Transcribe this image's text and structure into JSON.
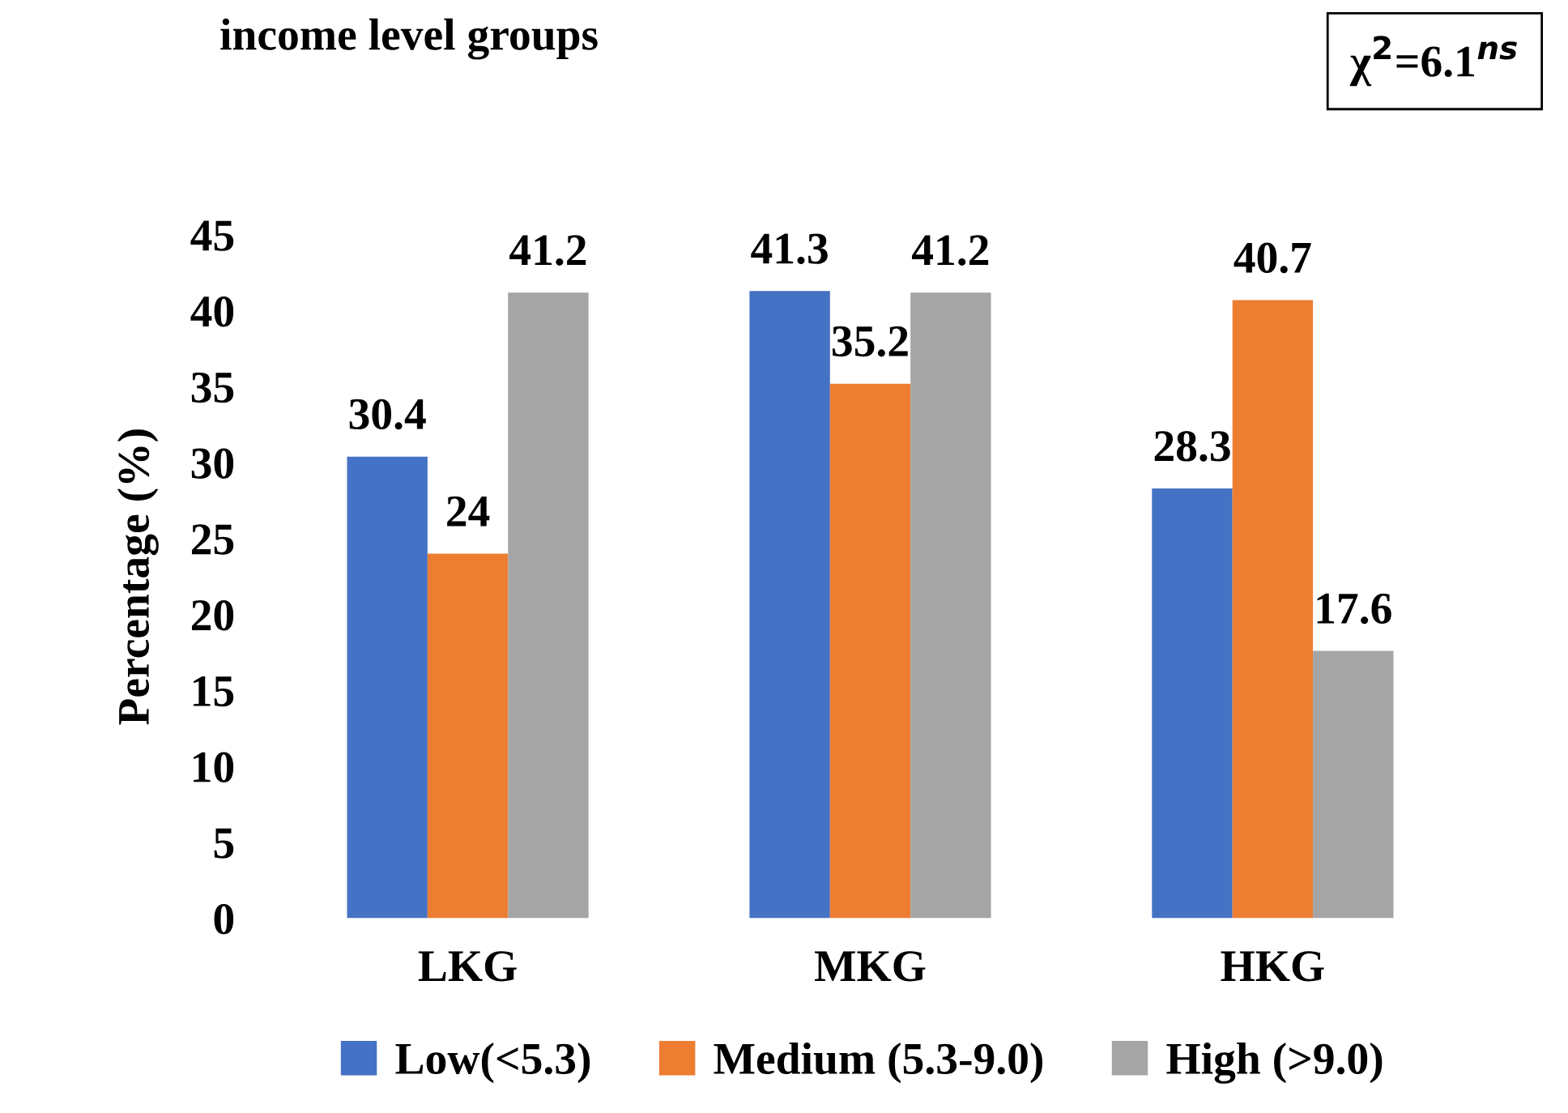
{
  "chart_data": {
    "type": "bar",
    "title": "income level groups",
    "ylabel": "Percentage (%)",
    "categories": [
      "LKG",
      "MKG",
      "HKG"
    ],
    "series": [
      {
        "name": "Low(<5.3)",
        "color": "#4472c4",
        "values": [
          30.4,
          41.3,
          28.3
        ]
      },
      {
        "name": "Medium (5.3-9.0)",
        "color": "#ed7d31",
        "values": [
          24,
          35.2,
          40.7
        ]
      },
      {
        "name": "High (>9.0)",
        "color": "#a5a5a5",
        "values": [
          41.2,
          41.2,
          17.6
        ]
      }
    ],
    "ylim": [
      0,
      45
    ],
    "yticks": [
      0,
      5,
      10,
      15,
      20,
      25,
      30,
      35,
      40,
      45
    ],
    "data_labels": true,
    "legend": "bottom",
    "grid": false,
    "annotations": [
      "χ$^{2}$=6.1$^{ns}$"
    ]
  }
}
